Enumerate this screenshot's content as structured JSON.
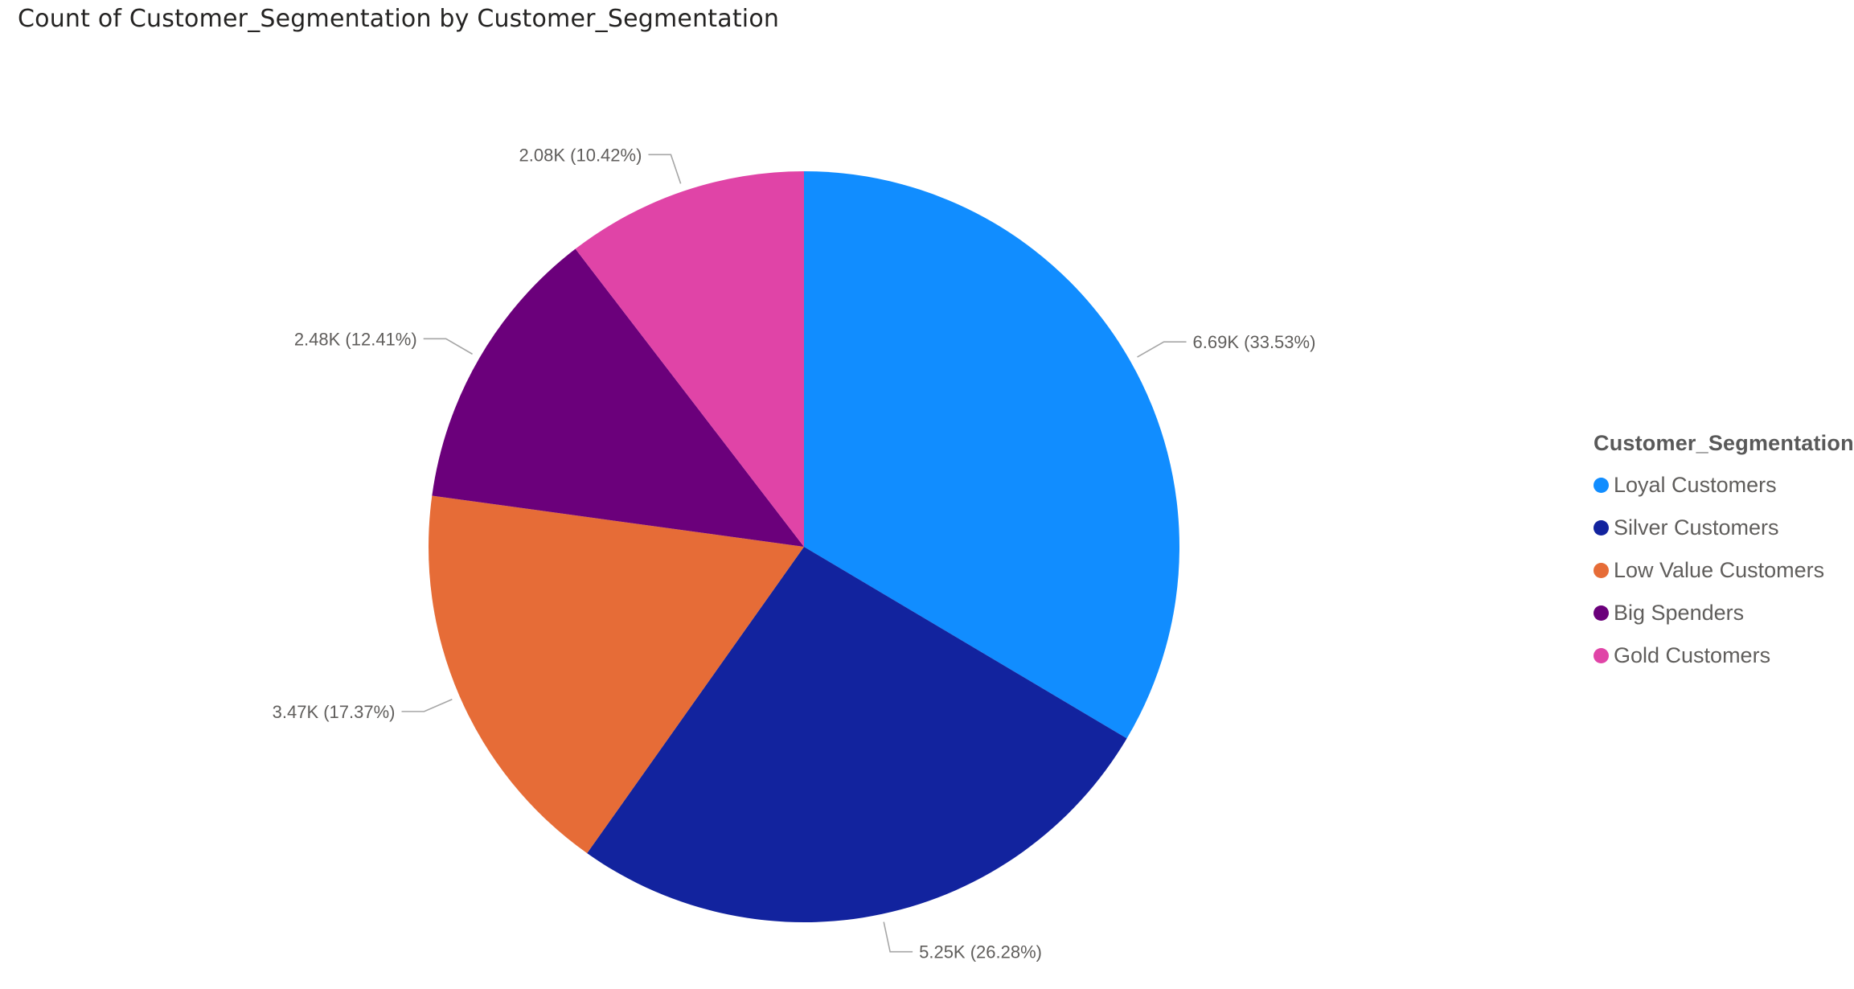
{
  "chart_data": {
    "type": "pie",
    "title": "Count of Customer_Segmentation by Customer_Segmentation",
    "legend_title": "Customer_Segmentation",
    "legend_position": "right",
    "categories": [
      "Loyal Customers",
      "Silver Customers",
      "Low Value Customers",
      "Big Spenders",
      "Gold Customers"
    ],
    "values": [
      6690,
      5250,
      3470,
      2480,
      2080
    ],
    "percentages": [
      33.53,
      26.28,
      17.37,
      12.41,
      10.42
    ],
    "labels": [
      "6.69K (33.53%)",
      "5.25K (26.28%)",
      "3.47K (17.37%)",
      "2.48K (12.41%)",
      "2.08K (10.42%)"
    ],
    "colors": [
      "#118DFF",
      "#12239E",
      "#E66C37",
      "#6B007B",
      "#E044A7"
    ]
  }
}
